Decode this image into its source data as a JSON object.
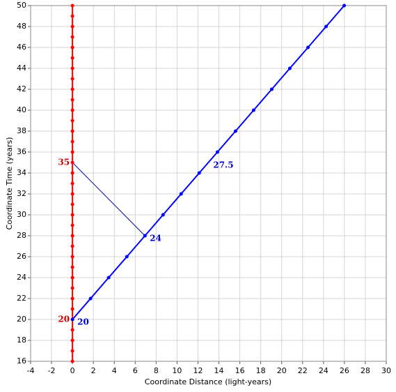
{
  "chart_data": {
    "type": "line",
    "x_label": "Coordinate Distance (light-years)",
    "y_label": "Coordinate Time (years)",
    "xlim": [
      -4,
      30
    ],
    "ylim": [
      16,
      50
    ],
    "xticks": [
      -4,
      -2,
      0,
      2,
      4,
      6,
      8,
      10,
      12,
      14,
      16,
      18,
      20,
      22,
      24,
      26,
      28,
      30
    ],
    "yticks": [
      16,
      18,
      20,
      22,
      24,
      26,
      28,
      30,
      32,
      34,
      36,
      38,
      40,
      42,
      44,
      46,
      48,
      50
    ],
    "grid": true,
    "series": [
      {
        "color": "#ff0000",
        "x": [
          0,
          0,
          0,
          0,
          0,
          0,
          0,
          0,
          0,
          0,
          0,
          0,
          0,
          0,
          0,
          0,
          0,
          0,
          0,
          0,
          0,
          0,
          0,
          0,
          0,
          0,
          0,
          0,
          0,
          0,
          0,
          0,
          0,
          0,
          0
        ],
        "y": [
          16,
          17,
          18,
          19,
          20,
          21,
          22,
          23,
          24,
          25,
          26,
          27,
          28,
          29,
          30,
          31,
          32,
          33,
          34,
          35,
          36,
          37,
          38,
          39,
          40,
          41,
          42,
          43,
          44,
          45,
          46,
          47,
          48,
          49,
          50
        ]
      },
      {
        "color": "#0000ff",
        "x": [
          0,
          1.73,
          3.46,
          5.2,
          6.93,
          8.66,
          10.39,
          12.12,
          13.86,
          15.59,
          17.32,
          19.05,
          20.78,
          22.52,
          24.25,
          25.98
        ],
        "y": [
          20,
          22,
          24,
          26,
          28,
          30,
          32,
          34,
          36,
          38,
          40,
          42,
          44,
          46,
          48,
          50
        ]
      }
    ],
    "segments": [
      {
        "color": "#0000aa",
        "x": [
          0,
          6.93
        ],
        "y": [
          35,
          28
        ]
      }
    ],
    "annotations": [
      {
        "text": "35",
        "x": 0,
        "y": 35,
        "side": "left",
        "color": "#cc0000"
      },
      {
        "text": "20",
        "x": 0,
        "y": 20,
        "side": "left",
        "color": "#cc0000"
      },
      {
        "text": "20",
        "x": 0,
        "y": 20,
        "side": "right",
        "color": "#0000cc"
      },
      {
        "text": "24",
        "x": 6.93,
        "y": 28,
        "side": "right",
        "color": "#0000cc"
      },
      {
        "text": "27.5",
        "x": 12.99,
        "y": 35,
        "side": "right",
        "color": "#0000cc"
      }
    ]
  }
}
